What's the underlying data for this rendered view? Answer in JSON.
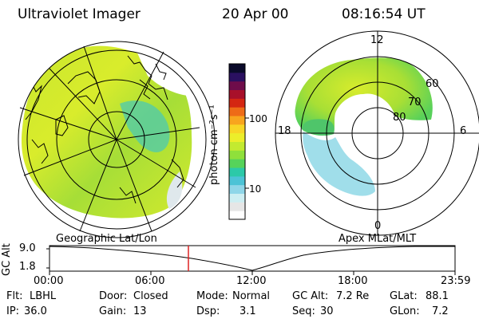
{
  "header": {
    "instrument": "Ultraviolet Imager",
    "date": "20 Apr 00",
    "time": "08:16:54 UT"
  },
  "colorbar": {
    "unit_label": "photon cm⁻²s⁻¹",
    "tick_labels": [
      "100",
      "10"
    ],
    "colors": [
      "#ffffff",
      "#e6e6e6",
      "#cdeef2",
      "#8fd6e8",
      "#4cc3d6",
      "#2cc9a8",
      "#56d35a",
      "#8fe03b",
      "#c3ea30",
      "#ecee2a",
      "#f8d626",
      "#f8a51e",
      "#ee6b17",
      "#d42612",
      "#a8102a",
      "#6e0c4a",
      "#2a1060",
      "#0a0a2a"
    ]
  },
  "geographic_panel": {
    "label": "Geographic Lat/Lon"
  },
  "magnetic_panel": {
    "label": "Apex MLat/MLT",
    "mlt_labels": [
      "12",
      "18",
      "6",
      "0"
    ],
    "lat_labels": [
      "60",
      "70",
      "80"
    ]
  },
  "altitude_plot": {
    "ylabel": "GC Alt",
    "y_ticks": [
      "9.0",
      "1.8"
    ],
    "x_ticks": [
      "00:00",
      "06:00",
      "12:00",
      "18:00",
      "23:59"
    ],
    "marker_color": "#dd2222"
  },
  "status": {
    "flt_label": "Flt:",
    "flt_value": "LBHL",
    "ip_label": "IP:",
    "ip_value": "36.0",
    "door_label": "Door:",
    "door_value": "Closed",
    "gain_label": "Gain:",
    "gain_value": "13",
    "mode_label": "Mode:",
    "mode_value": "Normal",
    "dsp_label": "Dsp:",
    "dsp_value": "3.1",
    "gcalt_label": "GC Alt:",
    "gcalt_value": "7.2 Re",
    "seq_label": "Seq:",
    "seq_value": "30",
    "glat_label": "GLat:",
    "glat_value": "88.1",
    "glon_label": "GLon:",
    "glon_value": "7.2"
  }
}
